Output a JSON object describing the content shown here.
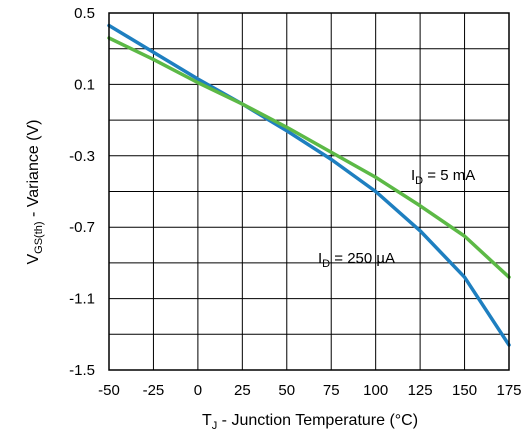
{
  "chart_data": {
    "type": "line",
    "title": "",
    "xlabel": {
      "main": "T",
      "sub": "J",
      "rest": " - Junction Temperature (°C)"
    },
    "ylabel": {
      "main": "V",
      "sub": "GS(th)",
      "rest": " - Variance (V)"
    },
    "xlim": [
      -50,
      175
    ],
    "ylim": [
      -1.5,
      0.5
    ],
    "xticks": [
      -50,
      -25,
      0,
      25,
      50,
      75,
      100,
      125,
      150,
      175
    ],
    "xtick_labels": [
      "-50",
      "-25",
      "0",
      "25",
      "50",
      "75",
      "100",
      "125",
      "150",
      "175"
    ],
    "yticks": [
      -1.5,
      -1.1,
      -0.7,
      -0.3,
      0.1,
      0.5
    ],
    "ytick_labels": [
      "-1.5",
      "-1.1",
      "-0.7",
      "-0.3",
      "0.1",
      "0.5"
    ],
    "grid": true,
    "series": [
      {
        "label": {
          "main": "I",
          "sub": "D",
          "rest": " = 250 µA"
        },
        "color": "#1e7fc0",
        "x": [
          -50,
          -25,
          0,
          25,
          50,
          75,
          100,
          125,
          150,
          175
        ],
        "y": [
          0.43,
          0.28,
          0.13,
          -0.01,
          -0.16,
          -0.32,
          -0.5,
          -0.72,
          -0.98,
          -1.36
        ]
      },
      {
        "label": {
          "main": "I",
          "sub": "D",
          "rest": " = 5 mA"
        },
        "color": "#5cb946",
        "x": [
          -50,
          -25,
          0,
          25,
          50,
          75,
          100,
          125,
          150,
          175
        ],
        "y": [
          0.36,
          0.24,
          0.11,
          -0.01,
          -0.14,
          -0.28,
          -0.42,
          -0.58,
          -0.75,
          -0.98
        ]
      }
    ]
  }
}
